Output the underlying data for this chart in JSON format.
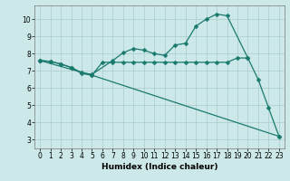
{
  "title": "",
  "xlabel": "Humidex (Indice chaleur)",
  "background_color": "#cce8e8",
  "grid_color": "#aacccc",
  "line_color": "#1a7a6e",
  "xlim": [
    -0.5,
    23.5
  ],
  "ylim": [
    2.5,
    10.8
  ],
  "yticks": [
    3,
    4,
    5,
    6,
    7,
    8,
    9,
    10
  ],
  "xticks": [
    0,
    1,
    2,
    3,
    4,
    5,
    6,
    7,
    8,
    9,
    10,
    11,
    12,
    13,
    14,
    15,
    16,
    17,
    18,
    19,
    20,
    21,
    22,
    23
  ],
  "line1_x": [
    0,
    1,
    2,
    3,
    4,
    5,
    6,
    7,
    8,
    9,
    10,
    11,
    12,
    13,
    14,
    15,
    16,
    17,
    18,
    19,
    20
  ],
  "line1_y": [
    7.6,
    7.55,
    7.4,
    7.2,
    6.85,
    6.75,
    7.5,
    7.5,
    7.5,
    7.5,
    7.5,
    7.5,
    7.5,
    7.5,
    7.5,
    7.5,
    7.5,
    7.5,
    7.5,
    7.75,
    7.75
  ],
  "line2_x": [
    0,
    1,
    2,
    3,
    4,
    5,
    7,
    8,
    9,
    10,
    11,
    12,
    13,
    14,
    15,
    16,
    17,
    18,
    20,
    21,
    22,
    23
  ],
  "line2_y": [
    7.6,
    7.55,
    7.4,
    7.2,
    6.9,
    6.8,
    7.6,
    8.05,
    8.3,
    8.2,
    8.0,
    7.9,
    8.5,
    8.6,
    9.6,
    10.0,
    10.3,
    10.2,
    7.75,
    6.5,
    4.85,
    3.2
  ],
  "line3_x": [
    0,
    5,
    23
  ],
  "line3_y": [
    7.6,
    6.75,
    3.2
  ],
  "marker_size": 2.5,
  "line_width": 0.9,
  "tick_fontsize": 5.5,
  "xlabel_fontsize": 6.5
}
